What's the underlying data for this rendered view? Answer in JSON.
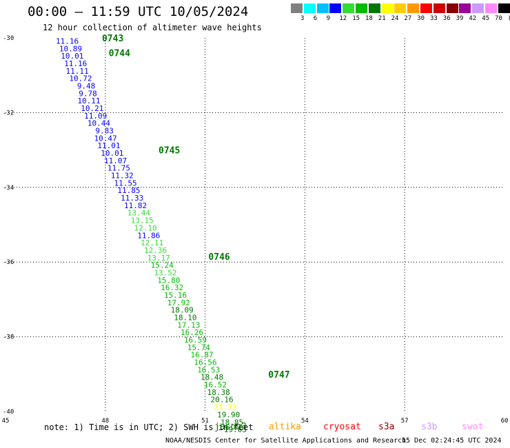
{
  "header": {
    "title": "00:00 – 11:59 UTC 10/05/2024",
    "subtitle": "12 hour collection of altimeter wave heights"
  },
  "legend": {
    "labels": [
      "3",
      "6",
      "9",
      "12",
      "15",
      "18",
      "21",
      "24",
      "27",
      "30",
      "33",
      "36",
      "39",
      "42",
      "45",
      "70",
      "(ft)"
    ],
    "colors": [
      "#808080",
      "#00ffff",
      "#00bfff",
      "#0000ff",
      "#33dd33",
      "#00bb00",
      "#007700",
      "#ffff00",
      "#ffcc00",
      "#ff9900",
      "#ff0000",
      "#cc0000",
      "#880000",
      "#990099",
      "#cc99ff",
      "#ff88ff",
      "#000000"
    ]
  },
  "footer": {
    "note": "note: 1) Time is in UTC; 2) SWH is in feet",
    "satellites": [
      {
        "name": "jason3",
        "color": "#007700"
      },
      {
        "name": "altika",
        "color": "#ff9900"
      },
      {
        "name": "cryosat",
        "color": "#ff0000"
      },
      {
        "name": "s3a",
        "color": "#880000"
      },
      {
        "name": "s3b",
        "color": "#cc99ff"
      },
      {
        "name": "swot",
        "color": "#ff88ff"
      }
    ],
    "credit": "NOAA/NESDIS Center for Satellite Applications and Research",
    "timestamp": "15 Dec 02:24:45 UTC 2024"
  },
  "chart_data": {
    "type": "scatter",
    "xlim": [
      45,
      60
    ],
    "ylim": [
      -40,
      -30
    ],
    "x_ticks": [
      "45",
      "48",
      "51",
      "54",
      "57",
      "60"
    ],
    "y_ticks": [
      "-30",
      "-32",
      "-34",
      "-36",
      "-38",
      "-40"
    ],
    "grid": true,
    "series": [
      {
        "points": [
          {
            "lon": 47.2,
            "lat": -30.1,
            "swh": "11.16",
            "color": "#0000ff"
          },
          {
            "lon": 47.3,
            "lat": -30.3,
            "swh": "10.89",
            "color": "#0000ff"
          },
          {
            "lon": 47.35,
            "lat": -30.5,
            "swh": "10.01",
            "color": "#0000ff"
          },
          {
            "lon": 47.45,
            "lat": -30.7,
            "swh": "11.16",
            "color": "#0000ff"
          },
          {
            "lon": 47.5,
            "lat": -30.9,
            "swh": "11.11",
            "color": "#0000ff"
          },
          {
            "lon": 47.6,
            "lat": -31.1,
            "swh": "10.72",
            "color": "#0000ff"
          },
          {
            "lon": 47.7,
            "lat": -31.3,
            "swh": "9.48",
            "color": "#0000ff"
          },
          {
            "lon": 47.75,
            "lat": -31.5,
            "swh": "9.78",
            "color": "#0000ff"
          },
          {
            "lon": 47.85,
            "lat": -31.7,
            "swh": "10.11",
            "color": "#0000ff"
          },
          {
            "lon": 47.95,
            "lat": -31.9,
            "swh": "10.21",
            "color": "#0000ff"
          },
          {
            "lon": 48.05,
            "lat": -32.1,
            "swh": "11.09",
            "color": "#0000ff"
          },
          {
            "lon": 48.15,
            "lat": -32.3,
            "swh": "10.44",
            "color": "#0000ff"
          },
          {
            "lon": 48.25,
            "lat": -32.5,
            "swh": "9.83",
            "color": "#0000ff"
          },
          {
            "lon": 48.35,
            "lat": -32.7,
            "swh": "10.47",
            "color": "#0000ff"
          },
          {
            "lon": 48.45,
            "lat": -32.9,
            "swh": "11.01",
            "color": "#0000ff"
          },
          {
            "lon": 48.55,
            "lat": -33.1,
            "swh": "10.01",
            "color": "#0000ff"
          },
          {
            "lon": 48.65,
            "lat": -33.3,
            "swh": "11.07",
            "color": "#0000ff"
          },
          {
            "lon": 48.75,
            "lat": -33.5,
            "swh": "11.75",
            "color": "#0000ff"
          },
          {
            "lon": 48.85,
            "lat": -33.7,
            "swh": "11.32",
            "color": "#0000ff"
          },
          {
            "lon": 48.95,
            "lat": -33.9,
            "swh": "11.55",
            "color": "#0000ff"
          },
          {
            "lon": 49.05,
            "lat": -34.1,
            "swh": "11.85",
            "color": "#0000ff"
          },
          {
            "lon": 49.15,
            "lat": -34.3,
            "swh": "11.33",
            "color": "#0000ff"
          },
          {
            "lon": 49.25,
            "lat": -34.5,
            "swh": "11.82",
            "color": "#0000ff"
          },
          {
            "lon": 49.35,
            "lat": -34.7,
            "swh": "13.44",
            "color": "#33dd33"
          },
          {
            "lon": 49.45,
            "lat": -34.9,
            "swh": "13.15",
            "color": "#33dd33"
          },
          {
            "lon": 49.55,
            "lat": -35.1,
            "swh": "12.10",
            "color": "#33dd33"
          },
          {
            "lon": 49.65,
            "lat": -35.3,
            "swh": "11.86",
            "color": "#0000ff"
          },
          {
            "lon": 49.75,
            "lat": -35.5,
            "swh": "12.11",
            "color": "#33dd33"
          },
          {
            "lon": 49.85,
            "lat": -35.7,
            "swh": "12.36",
            "color": "#33dd33"
          },
          {
            "lon": 49.95,
            "lat": -35.9,
            "swh": "13.17",
            "color": "#33dd33"
          },
          {
            "lon": 50.05,
            "lat": -36.1,
            "swh": "15.24",
            "color": "#00bb00"
          },
          {
            "lon": 50.15,
            "lat": -36.3,
            "swh": "13.52",
            "color": "#33dd33"
          },
          {
            "lon": 50.25,
            "lat": -36.5,
            "swh": "15.80",
            "color": "#00bb00"
          },
          {
            "lon": 50.35,
            "lat": -36.7,
            "swh": "16.32",
            "color": "#00bb00"
          },
          {
            "lon": 50.45,
            "lat": -36.9,
            "swh": "15.16",
            "color": "#00bb00"
          },
          {
            "lon": 50.55,
            "lat": -37.1,
            "swh": "17.92",
            "color": "#00bb00"
          },
          {
            "lon": 50.65,
            "lat": -37.3,
            "swh": "18.09",
            "color": "#007700"
          },
          {
            "lon": 50.75,
            "lat": -37.5,
            "swh": "18.10",
            "color": "#007700"
          },
          {
            "lon": 50.85,
            "lat": -37.7,
            "swh": "17.13",
            "color": "#00bb00"
          },
          {
            "lon": 50.95,
            "lat": -37.9,
            "swh": "16.26",
            "color": "#00bb00"
          },
          {
            "lon": 51.05,
            "lat": -38.1,
            "swh": "16.59",
            "color": "#00bb00"
          },
          {
            "lon": 51.15,
            "lat": -38.3,
            "swh": "15.74",
            "color": "#00bb00"
          },
          {
            "lon": 51.25,
            "lat": -38.5,
            "swh": "16.87",
            "color": "#00bb00"
          },
          {
            "lon": 51.35,
            "lat": -38.7,
            "swh": "16.56",
            "color": "#00bb00"
          },
          {
            "lon": 51.45,
            "lat": -38.9,
            "swh": "16.53",
            "color": "#00bb00"
          },
          {
            "lon": 51.55,
            "lat": -39.1,
            "swh": "18.48",
            "color": "#007700"
          },
          {
            "lon": 51.65,
            "lat": -39.3,
            "swh": "16.52",
            "color": "#00bb00"
          },
          {
            "lon": 51.75,
            "lat": -39.5,
            "swh": "18.38",
            "color": "#007700"
          },
          {
            "lon": 51.85,
            "lat": -39.7,
            "swh": "20.16",
            "color": "#007700"
          },
          {
            "lon": 51.95,
            "lat": -39.9,
            "swh": "21.33",
            "color": "#ffff00"
          },
          {
            "lon": 52.05,
            "lat": -40.1,
            "swh": "19.90",
            "color": "#007700"
          },
          {
            "lon": 52.15,
            "lat": -40.3,
            "swh": "18.85",
            "color": "#007700"
          },
          {
            "lon": 52.25,
            "lat": -40.5,
            "swh": "19.63",
            "color": "#007700"
          }
        ]
      }
    ],
    "time_labels": [
      {
        "text": "0743",
        "lon": 47.9,
        "lat": -30.0
      },
      {
        "text": "0744",
        "lon": 48.1,
        "lat": -30.4
      },
      {
        "text": "0745",
        "lon": 49.6,
        "lat": -33.0
      },
      {
        "text": "0746",
        "lon": 51.1,
        "lat": -35.85
      },
      {
        "text": "0747",
        "lon": 52.9,
        "lat": -39.0
      }
    ],
    "time_label_color": "#007700"
  }
}
